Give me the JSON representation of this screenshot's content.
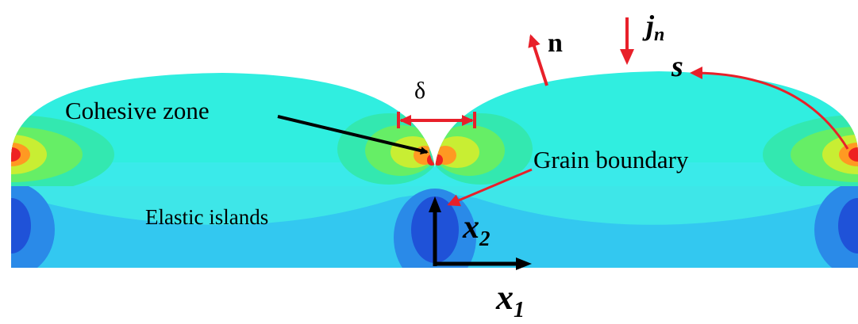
{
  "labels": {
    "cohesive_zone": "Cohesive zone",
    "delta": "δ",
    "normal": "n",
    "flux": {
      "base": "j",
      "sub": "n"
    },
    "arc": "s",
    "grain_boundary": "Grain boundary",
    "elastic_islands": "Elastic islands",
    "x2": {
      "base": "x",
      "sub": "2"
    },
    "x1": {
      "base": "x",
      "sub": "1"
    }
  }
}
